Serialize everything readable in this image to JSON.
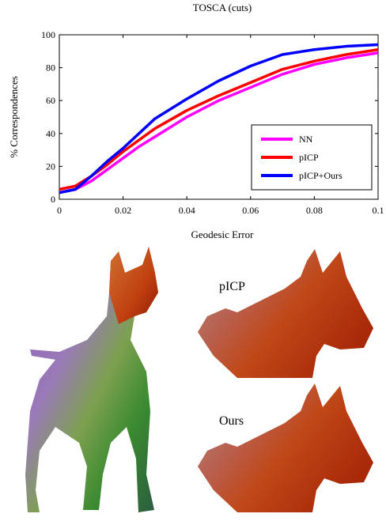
{
  "chart_data": {
    "type": "line",
    "title": "TOSCA (cuts)",
    "xlabel": "Geodesic Error",
    "ylabel": "% Correspondences",
    "x": [
      0,
      0.005,
      0.01,
      0.015,
      0.02,
      0.025,
      0.03,
      0.04,
      0.05,
      0.06,
      0.07,
      0.08,
      0.09,
      0.1
    ],
    "series": [
      {
        "name": "NN",
        "color": "#ff00ff",
        "values": [
          4,
          6,
          11,
          18,
          25,
          32,
          38,
          50,
          60,
          68,
          76,
          82,
          86,
          89
        ]
      },
      {
        "name": "pICP",
        "color": "#ff0000",
        "values": [
          6,
          8,
          14,
          21,
          29,
          36,
          43,
          54,
          63,
          71,
          79,
          84,
          88,
          91
        ]
      },
      {
        "name": "pICP+Ours",
        "color": "#0000ff",
        "values": [
          4,
          6,
          14,
          23,
          31,
          40,
          49,
          61,
          72,
          81,
          88,
          91,
          93,
          94
        ]
      }
    ],
    "xlim": [
      0,
      0.1
    ],
    "xticks": [
      0,
      0.02,
      0.04,
      0.06,
      0.08,
      0.1
    ],
    "ylim": [
      0,
      100
    ],
    "yticks": [
      0,
      20,
      40,
      60,
      80,
      100
    ],
    "legend": "lower right",
    "annotations": [
      "pICP",
      "Ours"
    ]
  }
}
